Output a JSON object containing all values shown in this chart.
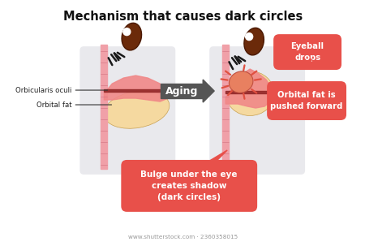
{
  "title": "Mechanism that causes dark circles",
  "title_fontsize": 10.5,
  "title_fontweight": "bold",
  "bg_color": "#ffffff",
  "panel_bg": "#e0e0e6",
  "salmon_color": "#f08888",
  "fat_color": "#f5d9a0",
  "dark_red": "#8b2020",
  "skin_pink": "#f4a0a8",
  "eyeball_brown": "#6b2a0a",
  "eyeball_dark": "#4a1800",
  "arrow_box_color": "#555555",
  "red_box_color": "#e8504a",
  "label1": "Orbicularis oculi",
  "label2": "Orbital fat",
  "label_eyeball": "Eyeball\ndrops",
  "label_fat": "Orbital fat is\npushed forward",
  "label_shadow": "Bulge under the eye\ncreates shadow\n(dark circles)",
  "label_aging": "Aging",
  "watermark": "www.shutterstock.com · 2360358015"
}
